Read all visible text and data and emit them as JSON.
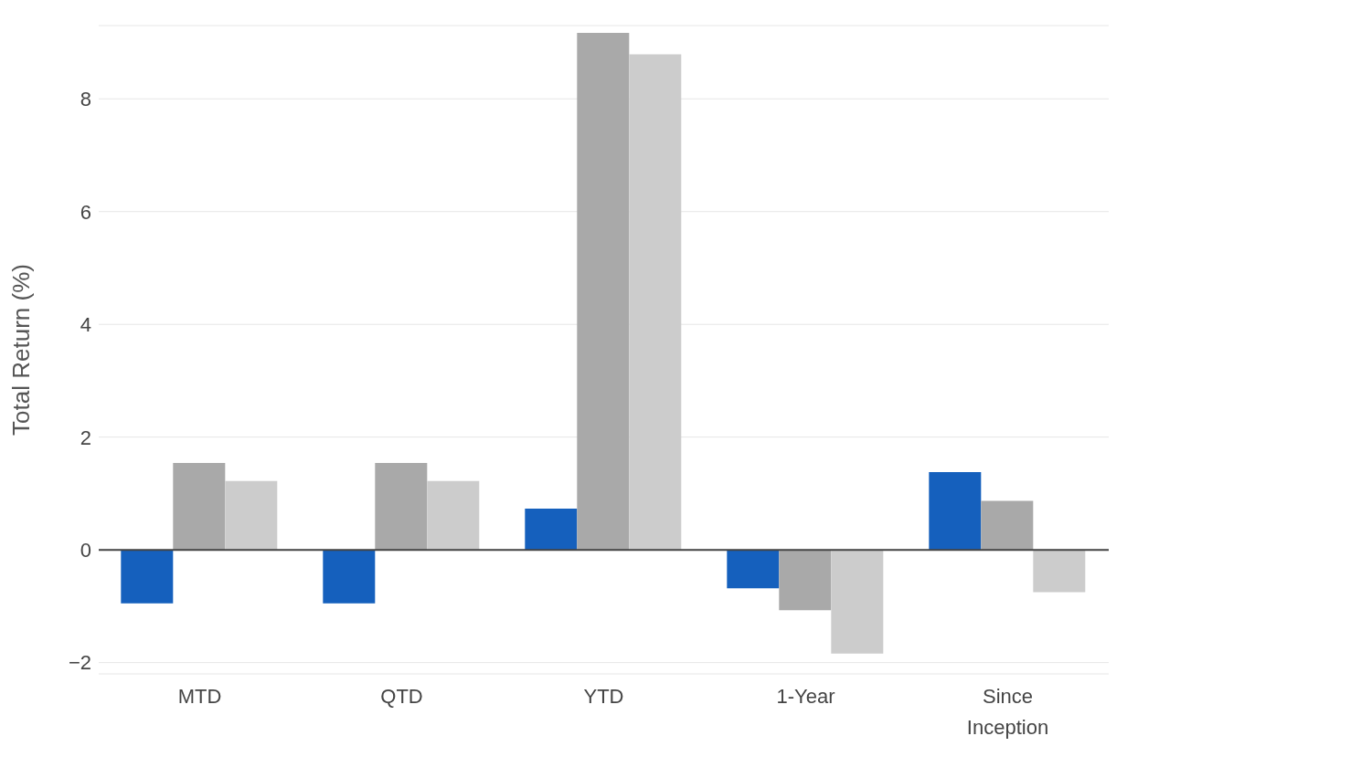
{
  "chart_data": {
    "type": "bar",
    "ylabel": "Total Return (%)",
    "categories": [
      "MTD",
      "QTD",
      "YTD",
      "1-Year",
      "Since Inception"
    ],
    "series": [
      {
        "color": "#1560bd",
        "values": [
          -0.95,
          -0.95,
          0.73,
          -0.68,
          1.38
        ]
      },
      {
        "color": "#a9a9a9",
        "values": [
          1.54,
          1.54,
          9.17,
          -1.07,
          0.87
        ]
      },
      {
        "color": "#cccccc",
        "values": [
          1.22,
          1.22,
          8.79,
          -1.84,
          -0.75
        ]
      }
    ],
    "ylim": [
      -2.2,
      9.3
    ],
    "yticks": [
      {
        "value": -2,
        "label": "−2"
      },
      0,
      2,
      4,
      6,
      8
    ],
    "grid": "y",
    "ref_lines": [
      {
        "axis": "y",
        "value": 0,
        "color": "#444444"
      }
    ]
  }
}
